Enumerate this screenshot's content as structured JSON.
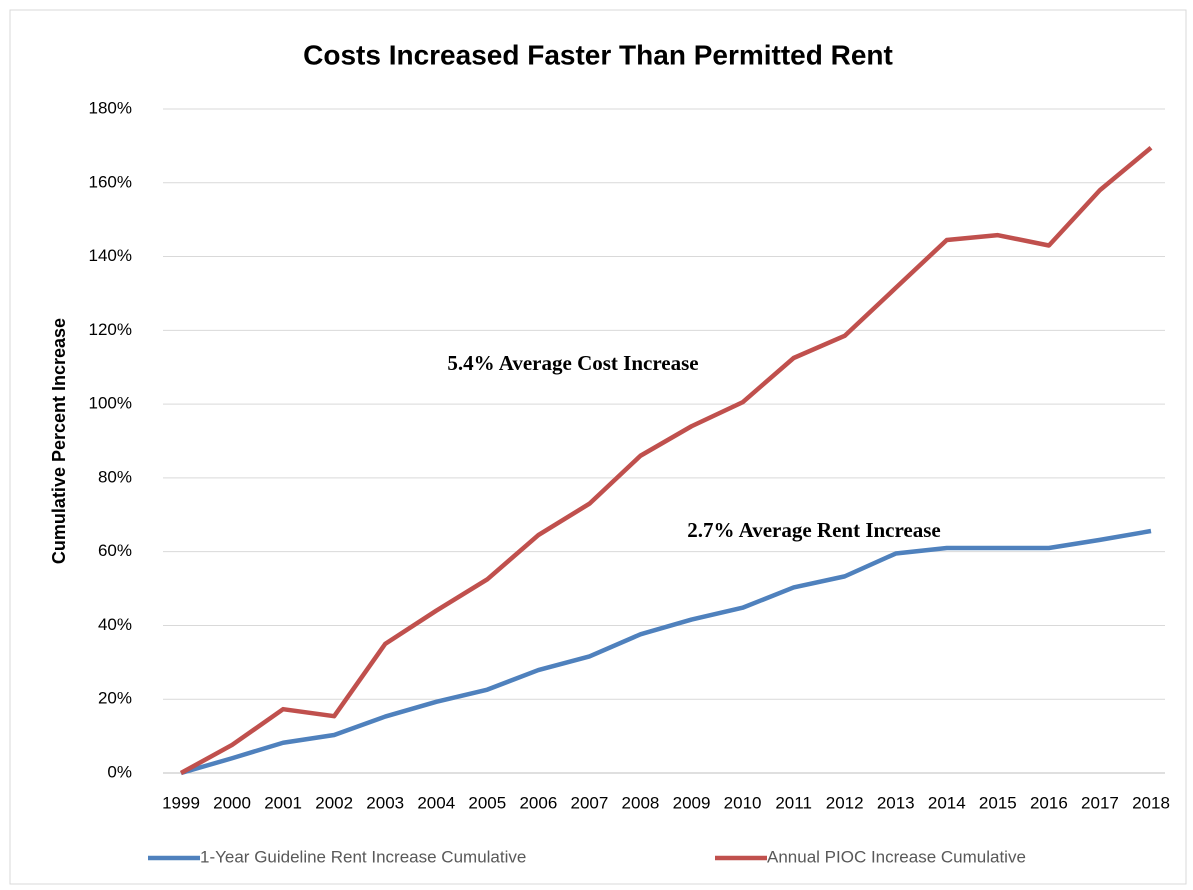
{
  "chart_data": {
    "type": "line",
    "title": "Costs Increased Faster Than Permitted Rent",
    "y_label": "Cumulative Percent Increase",
    "categories": [
      "1999",
      "2000",
      "2001",
      "2002",
      "2003",
      "2004",
      "2005",
      "2006",
      "2007",
      "2008",
      "2009",
      "2010",
      "2011",
      "2012",
      "2013",
      "2014",
      "2015",
      "2016",
      "2017",
      "2018"
    ],
    "series": [
      {
        "name": "1-Year Guideline Rent Increase Cumulative",
        "color": "#4f81bd",
        "values": [
          0,
          4,
          8.2,
          10.3,
          15.3,
          19.3,
          22.6,
          27.9,
          31.6,
          37.6,
          41.6,
          44.8,
          50.3,
          53.3,
          59.5,
          61,
          61,
          61,
          63.2,
          65.6
        ]
      },
      {
        "name": "Annual PIOC Increase Cumulative",
        "color": "#c0504d",
        "values": [
          0,
          7.6,
          17.3,
          15.4,
          35,
          44,
          52.5,
          64.5,
          73,
          86,
          94,
          100.5,
          112.5,
          118.5,
          131.5,
          144.5,
          145.8,
          143,
          158,
          169.5
        ]
      }
    ],
    "annotations": [
      "5.4% Average Cost Increase",
      "2.7% Average Rent Increase"
    ],
    "ylim": [
      0,
      180
    ],
    "yticks": [
      {
        "value": 0,
        "label": "0%"
      },
      {
        "value": 20,
        "label": "20%"
      },
      {
        "value": 40,
        "label": "40%"
      },
      {
        "value": 60,
        "label": "60%"
      },
      {
        "value": 80,
        "label": "80%"
      },
      {
        "value": 100,
        "label": "100%"
      },
      {
        "value": 120,
        "label": "120%"
      },
      {
        "value": 140,
        "label": "140%"
      },
      {
        "value": 160,
        "label": "160%"
      },
      {
        "value": 180,
        "label": "180%"
      }
    ],
    "grid": true,
    "legend": "bottom"
  }
}
